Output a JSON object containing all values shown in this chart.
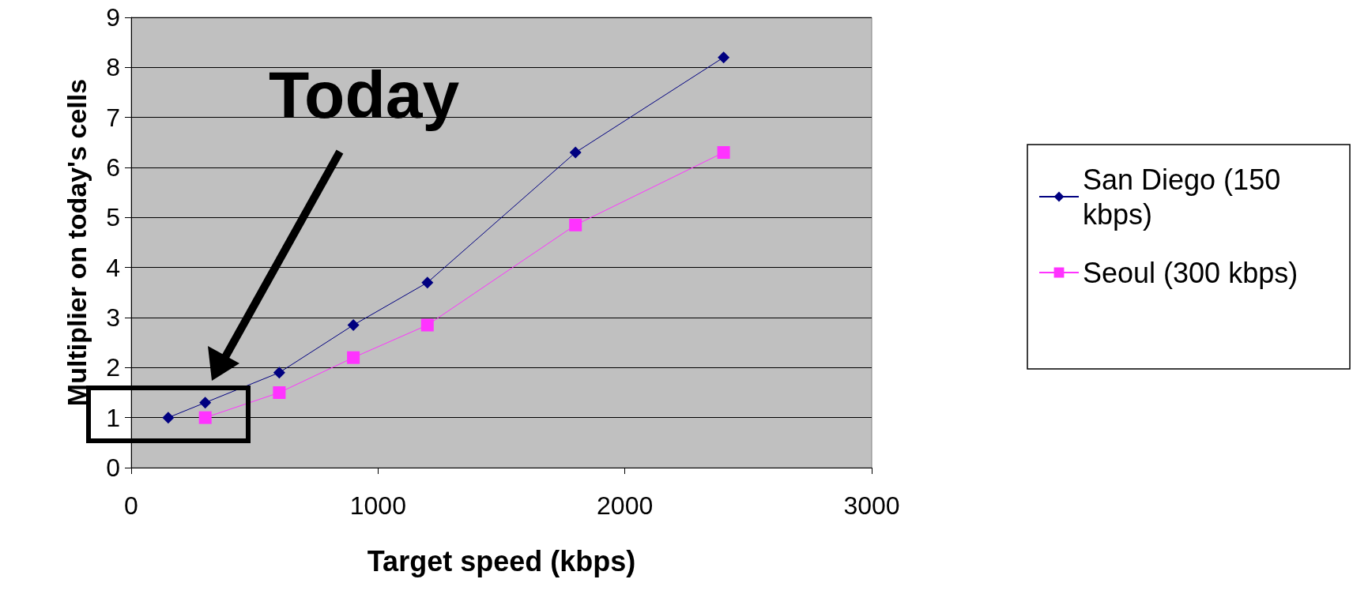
{
  "chart_data": {
    "type": "line",
    "xlabel": "Target speed (kbps)",
    "ylabel": "Multiplier on today's cells",
    "xlim": [
      0,
      3000
    ],
    "xticks": [
      0,
      1000,
      2000,
      3000
    ],
    "ylim": [
      0,
      9
    ],
    "yticks": [
      0,
      1,
      2,
      3,
      4,
      5,
      6,
      7,
      8,
      9
    ],
    "grid": "y",
    "legend": "right",
    "annotations": [
      "Today"
    ],
    "series": [
      {
        "name": "San Diego (150 kbps)",
        "color": "#000080",
        "marker": "diamond",
        "x": [
          150,
          300,
          600,
          900,
          1200,
          1800,
          2400
        ],
        "values": [
          1,
          1.3,
          1.9,
          2.85,
          3.7,
          6.3,
          8.2
        ]
      },
      {
        "name": "Seoul (300 kbps)",
        "color": "#ff33ff",
        "marker": "square",
        "x": [
          300,
          600,
          900,
          1200,
          1800,
          2400
        ],
        "values": [
          1,
          1.5,
          2.2,
          2.85,
          4.85,
          6.3
        ]
      }
    ]
  }
}
